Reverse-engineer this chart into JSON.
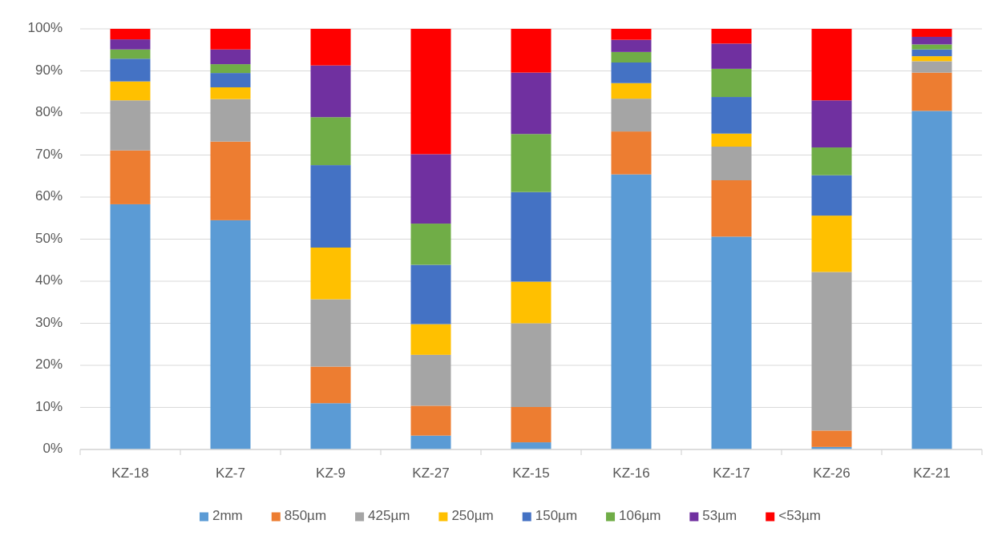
{
  "chart_data": {
    "type": "bar",
    "stacked": true,
    "categories": [
      "KZ-18",
      "KZ-7",
      "KZ-9",
      "KZ-27",
      "KZ-15",
      "KZ-16",
      "KZ-17",
      "KZ-26",
      "KZ-21"
    ],
    "series": [
      {
        "name": "2mm",
        "color": "#5b9bd5",
        "values": [
          58.3,
          54.5,
          11.0,
          3.3,
          1.7,
          65.4,
          50.6,
          0.6,
          80.5
        ]
      },
      {
        "name": "850µm",
        "color": "#ed7d31",
        "values": [
          12.8,
          18.7,
          8.7,
          7.1,
          8.4,
          10.2,
          13.4,
          3.9,
          9.1
        ]
      },
      {
        "name": "425µm",
        "color": "#a5a5a5",
        "values": [
          11.9,
          10.1,
          16.0,
          12.1,
          19.9,
          7.8,
          8.0,
          37.7,
          2.7
        ]
      },
      {
        "name": "250µm",
        "color": "#ffc000",
        "values": [
          4.5,
          2.8,
          12.3,
          7.3,
          9.9,
          3.7,
          3.1,
          13.4,
          1.2
        ]
      },
      {
        "name": "150µm",
        "color": "#4472c4",
        "values": [
          5.4,
          3.4,
          19.6,
          14.1,
          21.3,
          4.9,
          8.7,
          9.6,
          1.6
        ]
      },
      {
        "name": "106µm",
        "color": "#70ad47",
        "values": [
          2.2,
          2.1,
          11.4,
          9.8,
          13.8,
          2.5,
          6.7,
          6.6,
          1.2
        ]
      },
      {
        "name": "53µm",
        "color": "#7030a0",
        "values": [
          2.4,
          3.5,
          12.3,
          16.5,
          14.6,
          2.9,
          6.0,
          11.2,
          1.8
        ]
      },
      {
        "name": "<53µm",
        "color": "#ff0000",
        "values": [
          2.5,
          4.9,
          8.7,
          29.8,
          10.4,
          2.6,
          3.5,
          17.0,
          1.9
        ]
      }
    ],
    "ylim": [
      0,
      100
    ],
    "yticks": [
      {
        "value": 0,
        "label": "0%"
      },
      {
        "value": 10,
        "label": "10%"
      },
      {
        "value": 20,
        "label": "20%"
      },
      {
        "value": 30,
        "label": "30%"
      },
      {
        "value": 40,
        "label": "40%"
      },
      {
        "value": 50,
        "label": "50%"
      },
      {
        "value": 60,
        "label": "60%"
      },
      {
        "value": 70,
        "label": "70%"
      },
      {
        "value": 80,
        "label": "80%"
      },
      {
        "value": 90,
        "label": "90%"
      },
      {
        "value": 100,
        "label": "100%"
      }
    ],
    "grid": "y",
    "legend": "bottom"
  }
}
